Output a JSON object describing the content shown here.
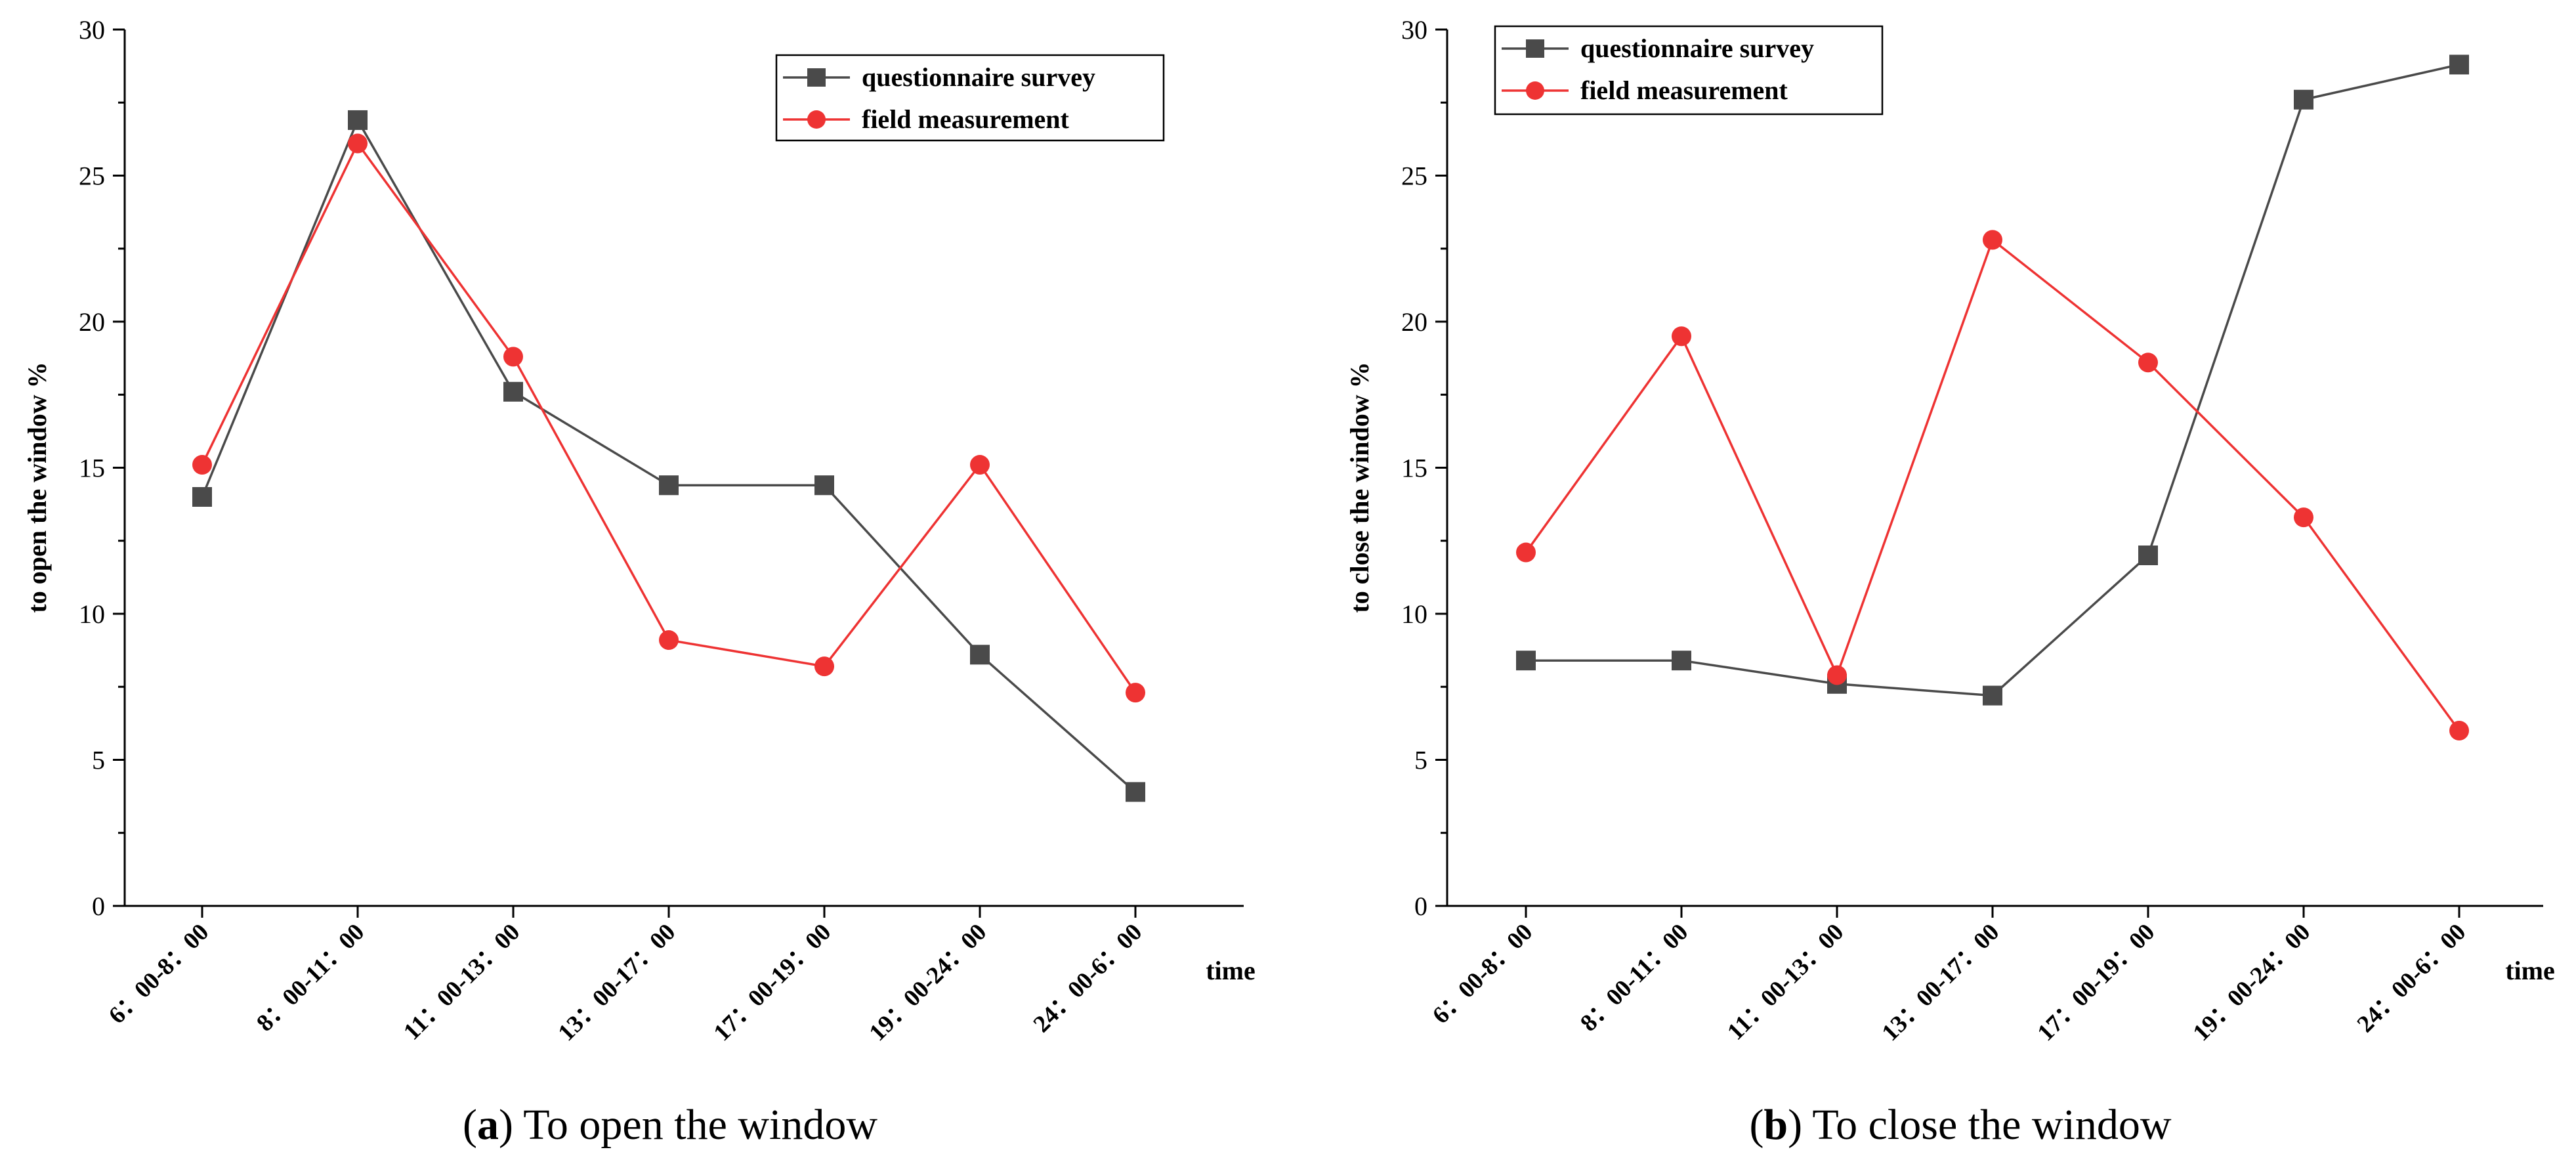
{
  "chart_data": [
    {
      "type": "line",
      "panel_label": "a",
      "caption_text": " To open the window",
      "xlabel": "time",
      "ylabel": "to open the window %",
      "categories": [
        "6：00-8：00",
        "8：00-11：00",
        "11：00-13：00",
        "13：00-17：00",
        "17：00-19：00",
        "19：00-24：00",
        "24：00-6：00"
      ],
      "ylim": [
        0,
        30
      ],
      "yticks": [
        "0",
        "5",
        "10",
        "15",
        "20",
        "25",
        "30"
      ],
      "legend_position": "top-right",
      "series": [
        {
          "name": "questionnaire survey",
          "marker": "square",
          "color": "#4a4a4a",
          "values": [
            14.0,
            26.9,
            17.6,
            14.4,
            14.4,
            8.6,
            3.9
          ]
        },
        {
          "name": "field measurement",
          "marker": "circle",
          "color": "#ee3333",
          "values": [
            15.1,
            26.1,
            18.8,
            9.1,
            8.2,
            15.1,
            7.3
          ]
        }
      ]
    },
    {
      "type": "line",
      "panel_label": "b",
      "caption_text": " To close the window",
      "xlabel": "time",
      "ylabel": "to close the window %",
      "categories": [
        "6：00-8：00",
        "8：00-11：00",
        "11：00-13：00",
        "13：00-17：00",
        "17：00-19：00",
        "19：00-24：00",
        "24：00-6：00"
      ],
      "ylim": [
        0,
        30
      ],
      "yticks": [
        "0",
        "5",
        "10",
        "15",
        "20",
        "25",
        "30"
      ],
      "legend_position": "top-left",
      "series": [
        {
          "name": "questionnaire survey",
          "marker": "square",
          "color": "#4a4a4a",
          "values": [
            8.4,
            8.4,
            7.6,
            7.2,
            12.0,
            27.6,
            28.8
          ]
        },
        {
          "name": "field measurement",
          "marker": "circle",
          "color": "#ee3333",
          "values": [
            12.1,
            19.5,
            7.9,
            22.8,
            18.6,
            13.3,
            6.0
          ]
        }
      ]
    }
  ]
}
